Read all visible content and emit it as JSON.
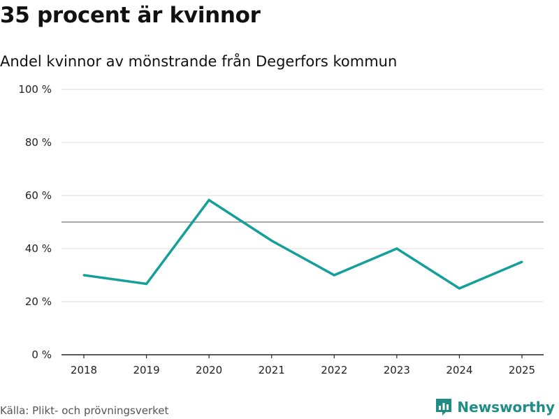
{
  "title": "35 procent är kvinnor",
  "subtitle": "Andel kvinnor av mönstrande från Degerfors kommun",
  "source": "Källa: Plikt- och prövningsverket",
  "brand": "Newsworthy",
  "colors": {
    "line": "#14a098",
    "grid": "#dddddd",
    "reference": "#777777",
    "brand": "#1f8c86"
  },
  "chart_data": {
    "type": "line",
    "title": "35 procent är kvinnor",
    "subtitle": "Andel kvinnor av mönstrande från Degerfors kommun",
    "xlabel": "",
    "ylabel": "",
    "categories": [
      "2018",
      "2019",
      "2020",
      "2021",
      "2022",
      "2023",
      "2024",
      "2025"
    ],
    "series": [
      {
        "name": "Andel kvinnor",
        "values": [
          30,
          26.7,
          58.3,
          43,
          30,
          40,
          25,
          35
        ]
      }
    ],
    "ylim": [
      0,
      100
    ],
    "yticks": [
      0,
      20,
      40,
      60,
      80,
      100
    ],
    "ytick_labels": [
      "0 %",
      "20 %",
      "40 %",
      "60 %",
      "80 %",
      "100 %"
    ],
    "reference_line": 50,
    "grid": true,
    "legend": "none"
  }
}
